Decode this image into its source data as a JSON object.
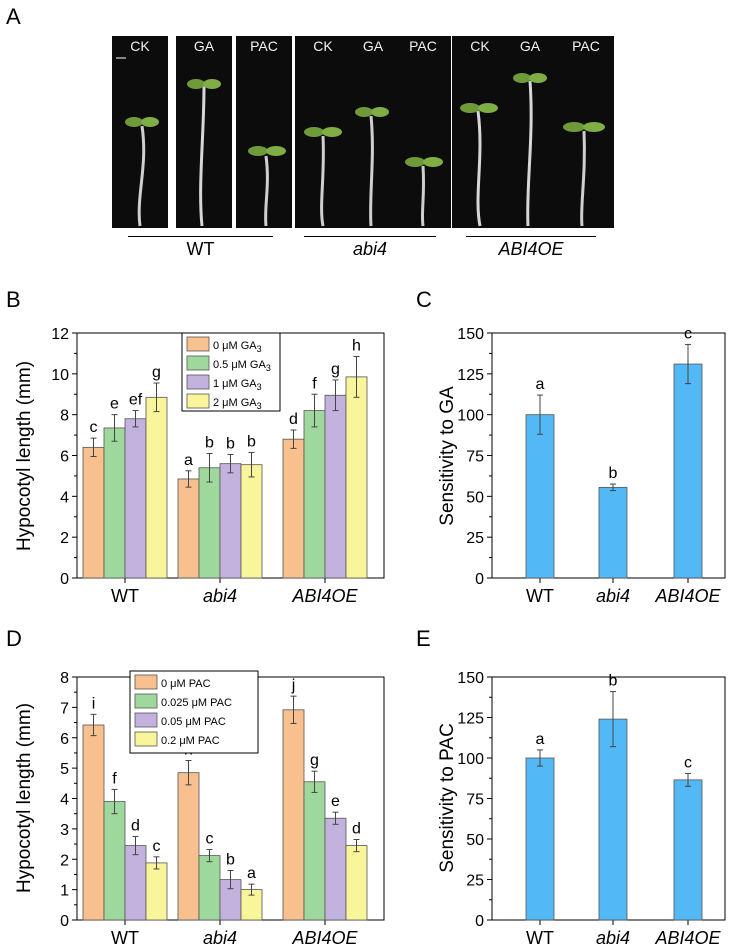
{
  "panel_letters": {
    "a": "A",
    "b": "B",
    "c": "C",
    "d": "D",
    "e": "E"
  },
  "photo_panel": {
    "strips": [
      "CK",
      "GA",
      "PAC",
      "CK",
      "GA",
      "PAC",
      "CK",
      "GA",
      "PAC"
    ],
    "groups": [
      "WT",
      "abi4",
      "ABI4OE"
    ]
  },
  "colors": {
    "orange": "#f8c08f",
    "green": "#9fd89c",
    "purple": "#c3b2de",
    "yellow": "#f9f59a",
    "blue": "#53b8f6"
  },
  "chart_data": [
    {
      "id": "B",
      "type": "bar",
      "categories": [
        "WT",
        "abi4",
        "ABI4OE"
      ],
      "italic_categories": [
        "abi4",
        "ABI4OE"
      ],
      "ylabel": "Hypocotyl length (mm)",
      "ylim": [
        0,
        12
      ],
      "yticks": [
        0,
        2,
        4,
        6,
        8,
        10,
        12
      ],
      "legend_position": "top-center",
      "series": [
        {
          "name": "0 μM GA3",
          "values": [
            6.4,
            4.85,
            6.8
          ],
          "errors": [
            0.45,
            0.4,
            0.45
          ],
          "letters": [
            "c",
            "a",
            "d"
          ]
        },
        {
          "name": "0.5 μM GA3",
          "values": [
            7.35,
            5.4,
            8.2
          ],
          "errors": [
            0.65,
            0.7,
            0.8
          ],
          "letters": [
            "e",
            "b",
            "f"
          ]
        },
        {
          "name": "1 μM GA3",
          "values": [
            7.8,
            5.6,
            8.95
          ],
          "errors": [
            0.4,
            0.45,
            0.75
          ],
          "letters": [
            "ef",
            "b",
            "g"
          ]
        },
        {
          "name": "2 μM GA3",
          "values": [
            8.85,
            5.55,
            9.85
          ],
          "errors": [
            0.7,
            0.6,
            1.0
          ],
          "letters": [
            "g",
            "b",
            "h"
          ]
        }
      ]
    },
    {
      "id": "C",
      "type": "bar",
      "categories": [
        "WT",
        "abi4",
        "ABI4OE"
      ],
      "italic_categories": [
        "abi4",
        "ABI4OE"
      ],
      "ylabel": "Sensitivity to GA",
      "ylim": [
        0,
        150
      ],
      "yticks": [
        0,
        25,
        50,
        75,
        100,
        125,
        150
      ],
      "series": [
        {
          "values": [
            100,
            55.5,
            131
          ],
          "errors": [
            12,
            2,
            12
          ],
          "letters": [
            "a",
            "b",
            "c"
          ]
        }
      ]
    },
    {
      "id": "D",
      "type": "bar",
      "categories": [
        "WT",
        "abi4",
        "ABI4OE"
      ],
      "italic_categories": [
        "abi4",
        "ABI4OE"
      ],
      "ylabel": "Hypocotyl length (mm)",
      "ylim": [
        0,
        8
      ],
      "yticks": [
        0,
        1,
        2,
        3,
        4,
        5,
        6,
        7,
        8
      ],
      "legend_position": "top-center",
      "series": [
        {
          "name": "0 μM PAC",
          "values": [
            6.42,
            4.85,
            6.92
          ],
          "errors": [
            0.35,
            0.4,
            0.45
          ],
          "letters": [
            "i",
            "h",
            "j"
          ]
        },
        {
          "name": "0.025 μM PAC",
          "values": [
            3.9,
            2.12,
            4.55
          ],
          "errors": [
            0.4,
            0.2,
            0.35
          ],
          "letters": [
            "f",
            "c",
            "g"
          ]
        },
        {
          "name": "0.05 μM PAC",
          "values": [
            2.45,
            1.33,
            3.35
          ],
          "errors": [
            0.3,
            0.3,
            0.2
          ],
          "letters": [
            "d",
            "b",
            "e"
          ]
        },
        {
          "name": "0.2 μM PAC",
          "values": [
            1.88,
            1.0,
            2.45
          ],
          "errors": [
            0.2,
            0.18,
            0.2
          ],
          "letters": [
            "c",
            "a",
            "d"
          ]
        }
      ]
    },
    {
      "id": "E",
      "type": "bar",
      "categories": [
        "WT",
        "abi4",
        "ABI4OE"
      ],
      "italic_categories": [
        "abi4",
        "ABI4OE"
      ],
      "ylabel": "Sensitivity to PAC",
      "ylim": [
        0,
        150
      ],
      "yticks": [
        0,
        25,
        50,
        75,
        100,
        125,
        150
      ],
      "series": [
        {
          "values": [
            100,
            124,
            86.5
          ],
          "errors": [
            5,
            17,
            4
          ],
          "letters": [
            "a",
            "b",
            "c"
          ]
        }
      ]
    }
  ]
}
